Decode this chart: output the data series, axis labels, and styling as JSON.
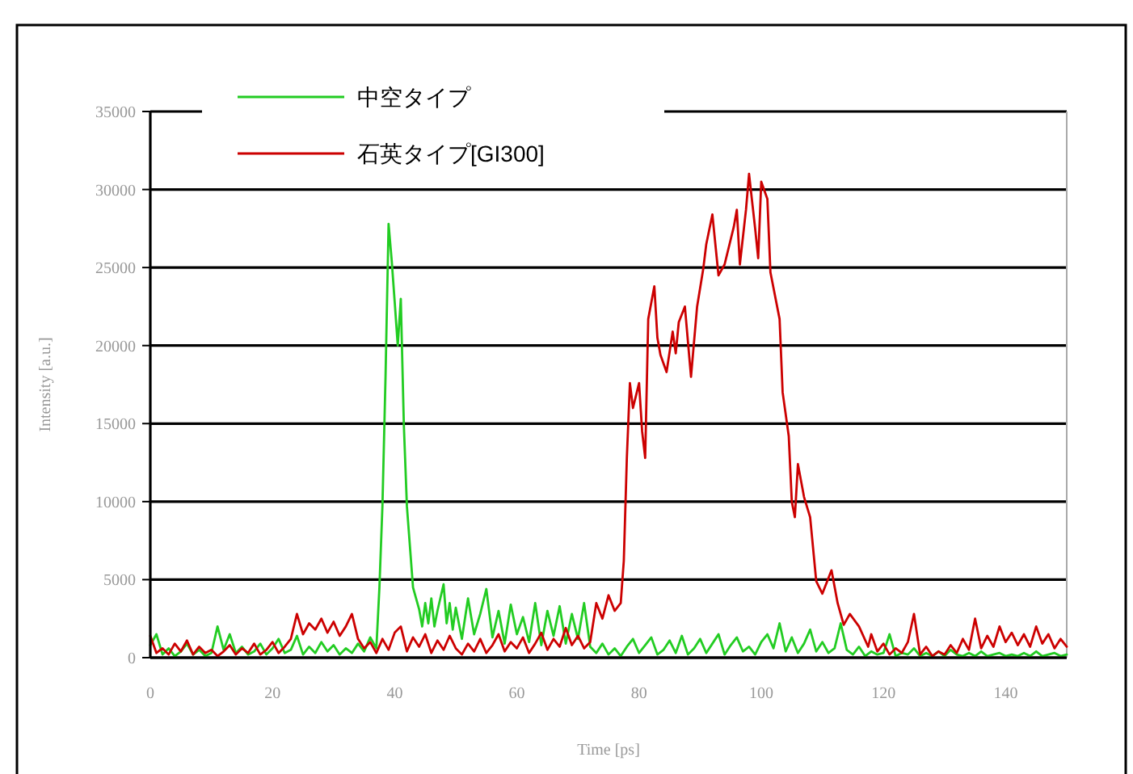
{
  "chart_data": {
    "type": "line",
    "xlabel": "Time [ps]",
    "ylabel": "Intensity [a.u.]",
    "xlim": [
      0,
      150
    ],
    "ylim": [
      0,
      35000
    ],
    "xticks": [
      0,
      20,
      40,
      60,
      80,
      100,
      120,
      140
    ],
    "yticks": [
      0,
      5000,
      10000,
      15000,
      20000,
      25000,
      30000,
      35000
    ],
    "grid": "y",
    "legend": "top left",
    "series": [
      {
        "name": "中空タイプ",
        "color": "#22cc22",
        "x": [
          0,
          1,
          2,
          3,
          4,
          5,
          6,
          7,
          8,
          9,
          10,
          11,
          12,
          13,
          14,
          15,
          16,
          17,
          18,
          19,
          20,
          21,
          22,
          23,
          24,
          25,
          26,
          27,
          28,
          29,
          30,
          31,
          32,
          33,
          34,
          35,
          36,
          37,
          37.5,
          38,
          38.5,
          39,
          39.5,
          40,
          40.5,
          41,
          41.5,
          42,
          43,
          44,
          44.5,
          45,
          45.5,
          46,
          46.5,
          47,
          48,
          48.5,
          49,
          49.5,
          50,
          51,
          52,
          53,
          54,
          55,
          56,
          57,
          58,
          59,
          60,
          61,
          62,
          63,
          64,
          65,
          66,
          67,
          68,
          69,
          70,
          71,
          72,
          73,
          74,
          75,
          76,
          77,
          78,
          79,
          80,
          81,
          82,
          83,
          84,
          85,
          86,
          87,
          88,
          89,
          90,
          91,
          92,
          93,
          94,
          95,
          96,
          97,
          98,
          99,
          100,
          101,
          102,
          103,
          104,
          105,
          106,
          107,
          108,
          109,
          110,
          111,
          112,
          113,
          114,
          115,
          116,
          117,
          118,
          119,
          120,
          121,
          122,
          123,
          124,
          125,
          126,
          127,
          128,
          129,
          130,
          131,
          132,
          133,
          134,
          135,
          136,
          137,
          138,
          139,
          140,
          141,
          142,
          143,
          144,
          145,
          146,
          147,
          148,
          149,
          150
        ],
        "values": [
          800,
          1500,
          200,
          600,
          100,
          400,
          900,
          200,
          500,
          100,
          300,
          2000,
          500,
          1500,
          300,
          700,
          200,
          400,
          900,
          200,
          600,
          1200,
          300,
          500,
          1400,
          200,
          700,
          300,
          1000,
          400,
          800,
          200,
          600,
          300,
          900,
          400,
          1300,
          600,
          4500,
          9800,
          18000,
          27800,
          25500,
          22800,
          20000,
          23000,
          14900,
          9700,
          4500,
          3100,
          2000,
          3500,
          2200,
          3800,
          2000,
          3000,
          4700,
          2200,
          3500,
          1800,
          3200,
          1200,
          3800,
          1500,
          2800,
          4400,
          1300,
          3000,
          900,
          3400,
          1500,
          2600,
          1000,
          3500,
          800,
          3000,
          1400,
          3300,
          900,
          2800,
          1200,
          3500,
          700,
          300,
          900,
          200,
          600,
          100,
          700,
          1200,
          300,
          800,
          1300,
          200,
          500,
          1100,
          300,
          1400,
          200,
          600,
          1200,
          300,
          900,
          1500,
          200,
          800,
          1300,
          400,
          700,
          200,
          1000,
          1500,
          600,
          2200,
          400,
          1300,
          300,
          900,
          1800,
          400,
          1000,
          300,
          600,
          2200,
          500,
          200,
          700,
          100,
          400,
          200,
          300,
          1500,
          100,
          300,
          200,
          600,
          100,
          300,
          100,
          400,
          100,
          500,
          200,
          100,
          300,
          100,
          400,
          100,
          200,
          300,
          100,
          200,
          100,
          300,
          100,
          400,
          100,
          200,
          300,
          100,
          200
        ]
      },
      {
        "name": "石英タイプ[GI300]",
        "color": "#cc0000",
        "x": [
          0,
          1,
          2,
          3,
          4,
          5,
          6,
          7,
          8,
          9,
          10,
          11,
          12,
          13,
          14,
          15,
          16,
          17,
          18,
          19,
          20,
          21,
          22,
          23,
          24,
          25,
          26,
          27,
          28,
          29,
          30,
          31,
          32,
          33,
          34,
          35,
          36,
          37,
          38,
          39,
          40,
          41,
          42,
          43,
          44,
          45,
          46,
          47,
          48,
          49,
          50,
          51,
          52,
          53,
          54,
          55,
          56,
          57,
          58,
          59,
          60,
          61,
          62,
          63,
          64,
          65,
          66,
          67,
          68,
          69,
          70,
          71,
          72,
          73,
          74,
          75,
          76,
          77,
          77.5,
          78,
          78.5,
          79,
          80,
          80.5,
          81,
          81.5,
          82.5,
          83,
          83.5,
          84.5,
          85.5,
          86,
          86.5,
          87.5,
          88.5,
          89.5,
          90.5,
          91,
          92,
          93,
          94,
          95.5,
          96,
          96.5,
          97.5,
          98,
          99,
          99.5,
          100,
          101,
          101.5,
          103,
          103.5,
          104.5,
          105,
          105.5,
          106,
          107,
          108,
          109,
          110,
          111.5,
          112.5,
          113.5,
          114.5,
          116,
          117.5,
          118,
          119,
          120,
          121,
          122,
          123,
          124,
          125,
          126,
          127,
          128,
          129,
          130,
          131,
          132,
          133,
          134,
          135,
          136,
          137,
          138,
          139,
          140,
          141,
          142,
          143,
          144,
          145,
          146,
          147,
          148,
          149,
          150
        ],
        "values": [
          1400,
          300,
          600,
          200,
          900,
          400,
          1100,
          200,
          700,
          300,
          500,
          100,
          400,
          800,
          200,
          600,
          300,
          900,
          200,
          500,
          1000,
          300,
          700,
          1200,
          2800,
          1500,
          2200,
          1800,
          2500,
          1600,
          2300,
          1400,
          2000,
          2800,
          1200,
          600,
          1000,
          300,
          1200,
          500,
          1600,
          2000,
          400,
          1300,
          700,
          1500,
          300,
          1100,
          500,
          1400,
          600,
          200,
          900,
          400,
          1200,
          300,
          800,
          1500,
          400,
          1000,
          600,
          1300,
          300,
          900,
          1600,
          500,
          1200,
          700,
          1900,
          800,
          1400,
          600,
          1000,
          3500,
          2500,
          4000,
          3000,
          3500,
          6200,
          12800,
          17600,
          16000,
          17600,
          14500,
          12800,
          21700,
          23800,
          20500,
          19400,
          18300,
          20900,
          19500,
          21500,
          22500,
          18000,
          22500,
          24900,
          26500,
          28400,
          24500,
          25200,
          27600,
          28700,
          25200,
          28700,
          31000,
          27500,
          25600,
          30500,
          29400,
          24700,
          21700,
          17000,
          14200,
          10000,
          9000,
          12400,
          10300,
          9000,
          4900,
          4100,
          5600,
          3500,
          2100,
          2800,
          2000,
          700,
          1500,
          400,
          900,
          200,
          600,
          300,
          1000,
          2800,
          200,
          700,
          100,
          400,
          200,
          800,
          300,
          1200,
          500,
          2500,
          600,
          1400,
          700,
          2000,
          1000,
          1600,
          800,
          1500,
          700,
          2000,
          900,
          1500,
          600,
          1200,
          700
        ]
      }
    ]
  }
}
